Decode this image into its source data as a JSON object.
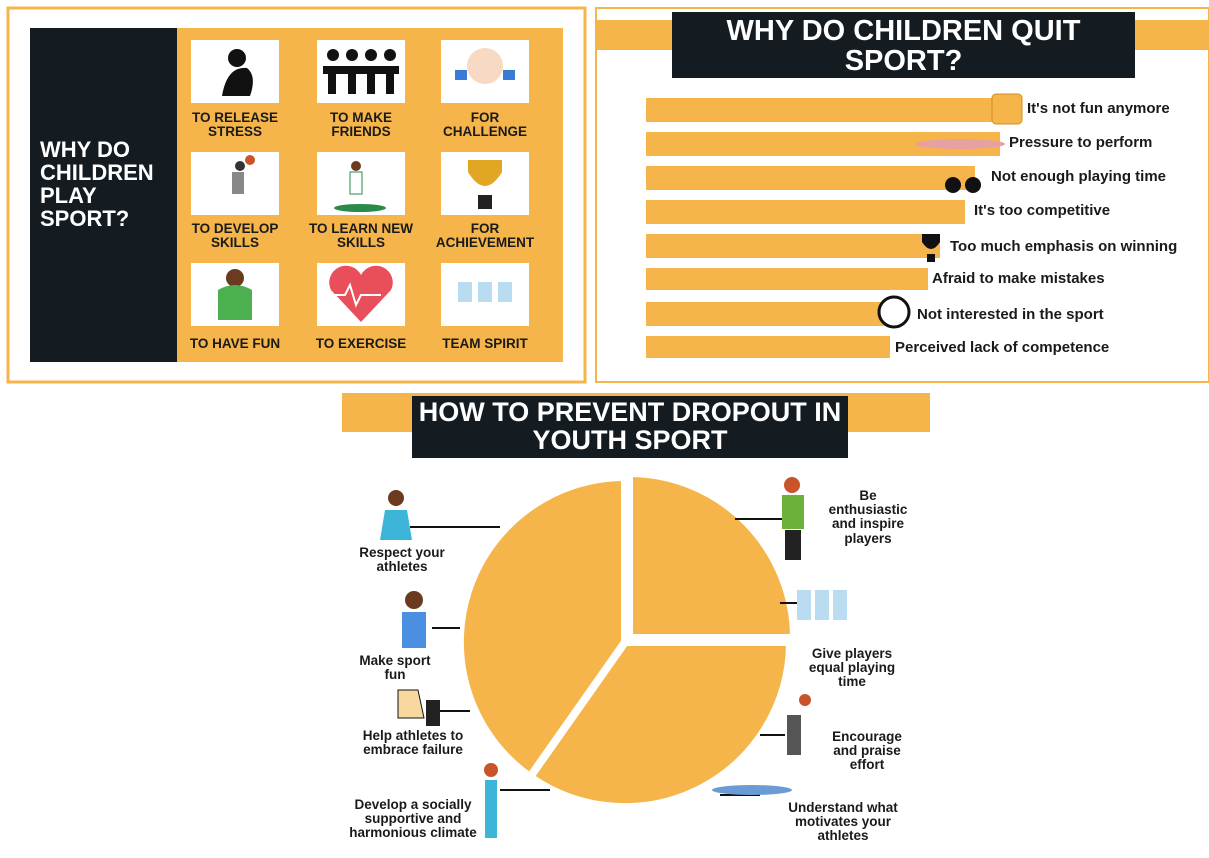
{
  "play": {
    "title": "WHY DO CHILDREN PLAY SPORT?",
    "items": [
      "TO RELEASE STRESS",
      "TO MAKE FRIENDS",
      "FOR CHALLENGE",
      "TO DEVELOP SKILLS",
      "TO LEARN NEW SKILLS",
      "FOR ACHIEVEMENT",
      "TO HAVE FUN",
      "TO EXERCISE",
      "TEAM SPIRIT"
    ]
  },
  "quit": {
    "title": "WHY DO CHILDREN QUIT SPORT?",
    "reasons": [
      "It's not fun anymore",
      "Pressure to perform",
      "Not enough playing time",
      "It's too competitive",
      "Too much emphasis on winning",
      "Afraid to make mistakes",
      "Not interested in the sport",
      "Perceived lack of competence"
    ]
  },
  "prevent": {
    "title": "HOW TO PREVENT DROPOUT IN YOUTH SPORT",
    "tips": [
      "Respect your athletes",
      "Make sport fun",
      "Help athletes to embrace failure",
      "Develop a socially supportive and harmonious climate",
      "Be enthusiastic and inspire players",
      "Give players equal playing time",
      "Encourage and praise effort",
      "Understand what motivates your athletes"
    ]
  }
}
